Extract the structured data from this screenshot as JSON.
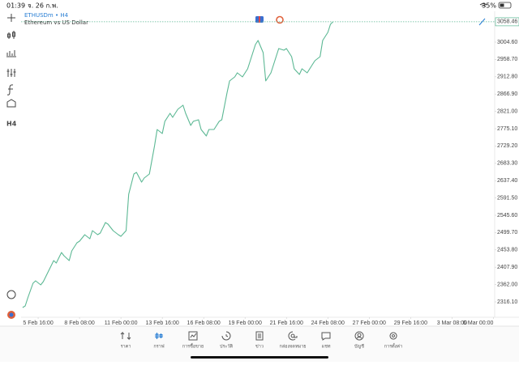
{
  "status_bar": {
    "time": "01:39",
    "date": "จ. 26 ก.พ.",
    "battery": "35%"
  },
  "header": {
    "symbol": "ETHUSDm • H4",
    "description": "Ethereum vs US Dollar"
  },
  "toolbar": {
    "timeframe": "H4"
  },
  "chart_data": {
    "type": "line",
    "x": [
      0,
      1,
      2,
      4,
      5,
      7,
      8,
      10,
      12,
      13,
      15,
      16,
      18,
      19,
      21,
      22,
      24,
      26,
      27,
      29,
      30,
      32,
      33,
      35,
      37,
      38,
      40,
      41,
      43,
      44,
      46,
      47,
      49,
      51,
      52,
      54,
      55,
      57,
      58,
      60,
      62,
      63,
      65,
      66,
      68,
      69,
      71,
      72,
      74,
      76,
      77,
      79,
      80,
      82,
      83,
      85,
      87,
      88,
      90,
      91,
      93,
      94,
      96,
      97,
      99,
      101,
      102,
      104,
      105,
      107,
      108,
      110,
      112,
      113,
      115,
      116,
      118,
      119,
      120
    ],
    "series": [
      {
        "name": "ETHUSDm",
        "color": "#5cb894",
        "values": [
          2301.1,
          2305.4,
          2326.8,
          2365.4,
          2371.9,
          2361.1,
          2369.7,
          2397.6,
          2425.5,
          2419.1,
          2447.0,
          2438.4,
          2425.5,
          2451.2,
          2472.7,
          2477.0,
          2494.1,
          2483.4,
          2504.9,
          2494.1,
          2498.4,
          2526.3,
          2522.0,
          2504.9,
          2494.1,
          2489.8,
          2504.9,
          2601.4,
          2655.0,
          2659.3,
          2633.6,
          2644.3,
          2655.0,
          2730.1,
          2773.0,
          2762.3,
          2794.5,
          2815.9,
          2805.2,
          2826.6,
          2837.3,
          2815.9,
          2783.7,
          2794.5,
          2798.7,
          2773.0,
          2755.8,
          2773.0,
          2773.0,
          2794.5,
          2798.7,
          2869.5,
          2901.7,
          2912.4,
          2923.1,
          2912.4,
          2933.9,
          2955.3,
          2998.2,
          3008.9,
          2976.8,
          2901.7,
          2923.1,
          2944.6,
          2987.5,
          2983.2,
          2987.5,
          2966.0,
          2933.9,
          2918.8,
          2933.9,
          2923.1,
          2944.6,
          2955.3,
          2966.0,
          3008.9,
          3030.4,
          3051.8,
          3058.46
        ]
      }
    ],
    "current_price": 3058.46,
    "xlim": [
      -0.6,
      182.5
    ],
    "ylim": [
      2275.3,
      3086.1
    ],
    "xticks": [
      {
        "value": 6,
        "label": "5 Feb 16:00"
      },
      {
        "value": 22,
        "label": "8 Feb 08:00"
      },
      {
        "value": 38,
        "label": "11 Feb 00:00"
      },
      {
        "value": 54,
        "label": "13 Feb 16:00"
      },
      {
        "value": 70,
        "label": "16 Feb 08:00"
      },
      {
        "value": 86,
        "label": "19 Feb 00:00"
      },
      {
        "value": 102,
        "label": "21 Feb 16:00"
      },
      {
        "value": 118,
        "label": "24 Feb 08:00"
      },
      {
        "value": 134,
        "label": "27 Feb 00:00"
      },
      {
        "value": 150,
        "label": "29 Feb 16:00"
      },
      {
        "value": 166,
        "label": "3 Mar 08:00"
      },
      {
        "value": 182,
        "label": "6 Mar 00:00"
      }
    ],
    "yticks": [
      {
        "value": 3004.6,
        "label": "3004.60"
      },
      {
        "value": 2958.7,
        "label": "2958.70"
      },
      {
        "value": 2912.8,
        "label": "2912.80"
      },
      {
        "value": 2866.9,
        "label": "2866.90"
      },
      {
        "value": 2821,
        "label": "2821.00"
      },
      {
        "value": 2775.1,
        "label": "2775.10"
      },
      {
        "value": 2729.2,
        "label": "2729.20"
      },
      {
        "value": 2683.3,
        "label": "2683.30"
      },
      {
        "value": 2637.4,
        "label": "2637.40"
      },
      {
        "value": 2591.5,
        "label": "2591.50"
      },
      {
        "value": 2545.6,
        "label": "2545.60"
      },
      {
        "value": 2499.7,
        "label": "2499.70"
      },
      {
        "value": 2453.8,
        "label": "2453.80"
      },
      {
        "value": 2407.9,
        "label": "2407.90"
      },
      {
        "value": 2362,
        "label": "2362.00"
      },
      {
        "value": 2316.1,
        "label": "2316.10"
      }
    ],
    "grid": false
  },
  "tabs": [
    {
      "label": "ราคา"
    },
    {
      "label": "กราฟ",
      "active": true
    },
    {
      "label": "การซื้อขาย"
    },
    {
      "label": "ประวัติ"
    },
    {
      "label": "ข่าว"
    },
    {
      "label": "กล่องจดหมาย"
    },
    {
      "label": "แชท"
    },
    {
      "label": "บัญชี"
    },
    {
      "label": "การตั้งค่า"
    }
  ]
}
